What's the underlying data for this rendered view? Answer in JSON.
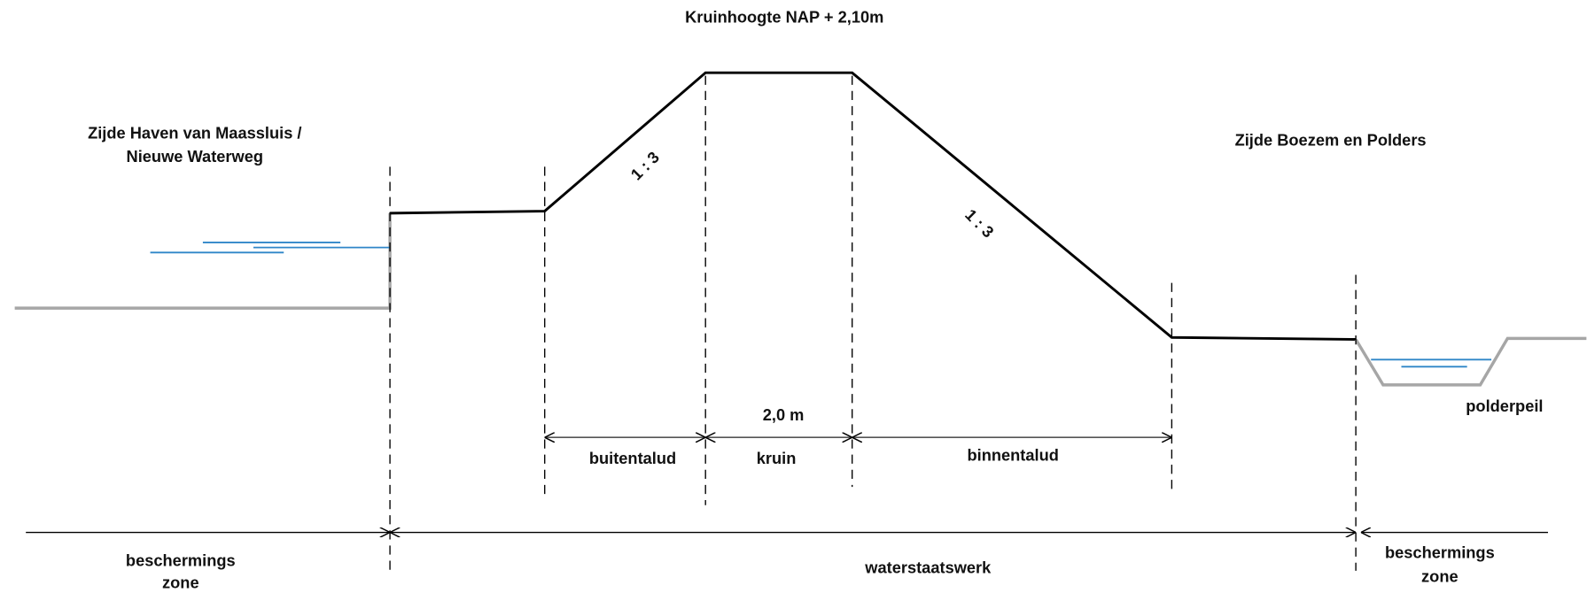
{
  "title": "Kruinhoogte NAP + 2,10m",
  "left_side": [
    "Zijde Haven van Maassluis /",
    "Nieuwe Waterweg"
  ],
  "right_side": "Zijde Boezem en Polders",
  "slopes": [
    "1 : 3",
    "1 : 3"
  ],
  "crest_width": "2,0 m",
  "sections": [
    "buitentalud",
    "kruin",
    "binnentalud"
  ],
  "polder_label": "polderpeil",
  "zones": {
    "left": [
      "beschermings",
      "zone"
    ],
    "middle": "waterstaatswerk",
    "right": [
      "beschermings",
      "zone"
    ]
  }
}
